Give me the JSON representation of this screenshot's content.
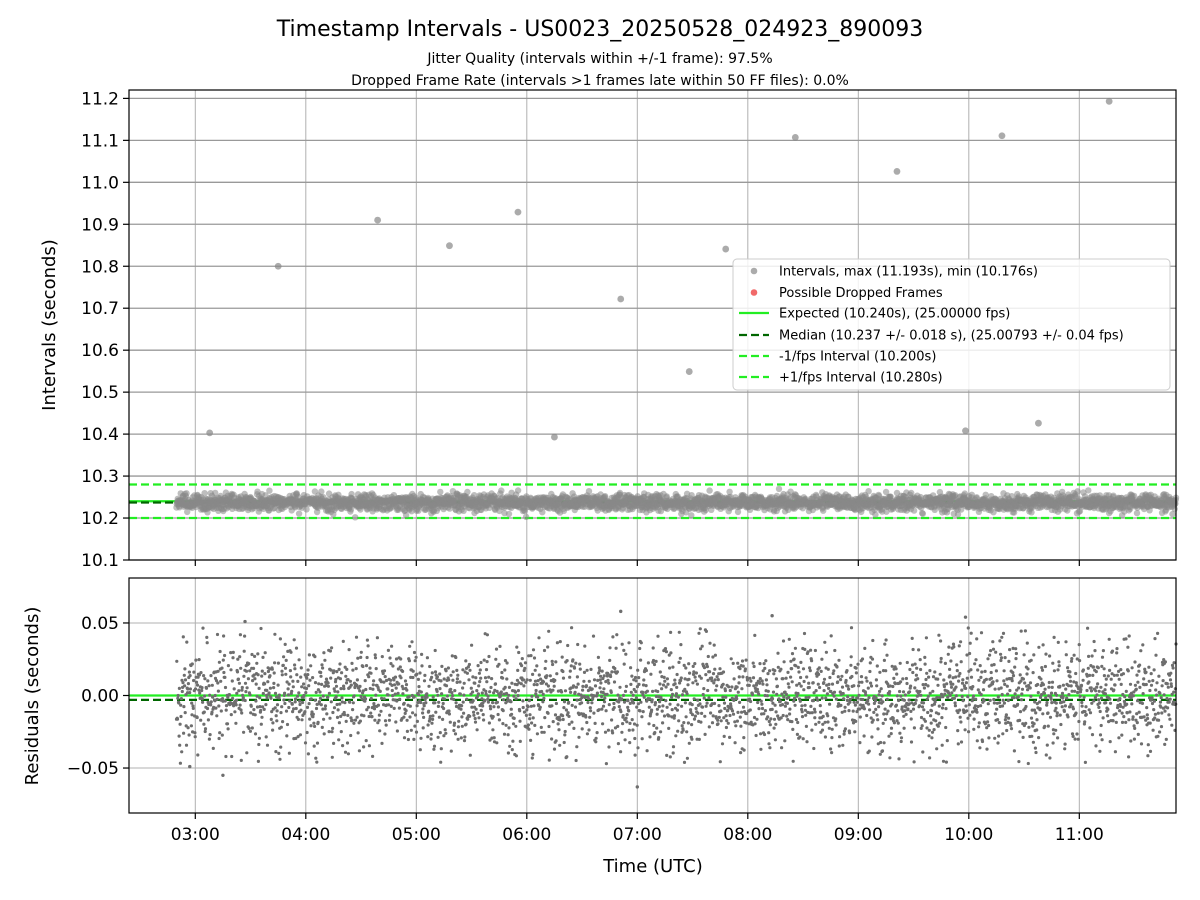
{
  "chart_data": {
    "title": "Timestamp Intervals - US0023_20250528_024923_890093",
    "subtitle_lines": [
      "Jitter Quality (intervals within +/-1 frame): 97.5%",
      "Dropped Frame Rate (intervals >1 frames late within 50 FF files): 0.0%"
    ],
    "xlabel": "Time (UTC)",
    "x_range_hours": [
      2.4,
      11.875
    ],
    "x_ticks": [
      {
        "label": "03:00",
        "hours": 3
      },
      {
        "label": "04:00",
        "hours": 4
      },
      {
        "label": "05:00",
        "hours": 5
      },
      {
        "label": "06:00",
        "hours": 6
      },
      {
        "label": "07:00",
        "hours": 7
      },
      {
        "label": "08:00",
        "hours": 8
      },
      {
        "label": "09:00",
        "hours": 9
      },
      {
        "label": "10:00",
        "hours": 10
      },
      {
        "label": "11:00",
        "hours": 11
      }
    ],
    "data_time_range_hours": [
      2.83,
      11.875
    ],
    "top_panel": {
      "type": "scatter",
      "ylabel": "Intervals (seconds)",
      "ylim": [
        10.1,
        11.22
      ],
      "y_ticks": [
        "10.1",
        "10.2",
        "10.3",
        "10.4",
        "10.5",
        "10.6",
        "10.7",
        "10.8",
        "10.9",
        "11.0",
        "11.1",
        "11.2"
      ],
      "grid": true,
      "reference_lines": [
        {
          "name": "expected",
          "y": 10.24,
          "style": "solid",
          "color": "#22ee22"
        },
        {
          "name": "median",
          "y": 10.237,
          "style": "dashed",
          "color": "#006600"
        },
        {
          "name": "minus-1fps",
          "y": 10.2,
          "style": "dashed",
          "color": "#22ee22"
        },
        {
          "name": "plus-1fps",
          "y": 10.28,
          "style": "dashed",
          "color": "#22ee22"
        }
      ],
      "outliers": [
        {
          "hours": 3.13,
          "y": 10.403
        },
        {
          "hours": 3.75,
          "y": 10.8
        },
        {
          "hours": 4.65,
          "y": 10.91
        },
        {
          "hours": 5.3,
          "y": 10.849
        },
        {
          "hours": 5.92,
          "y": 10.929
        },
        {
          "hours": 6.25,
          "y": 10.393
        },
        {
          "hours": 6.85,
          "y": 10.722
        },
        {
          "hours": 7.47,
          "y": 10.549
        },
        {
          "hours": 7.8,
          "y": 10.841
        },
        {
          "hours": 8.43,
          "y": 11.107
        },
        {
          "hours": 9.35,
          "y": 11.026
        },
        {
          "hours": 9.97,
          "y": 10.408
        },
        {
          "hours": 10.3,
          "y": 11.111
        },
        {
          "hours": 10.63,
          "y": 10.426
        },
        {
          "hours": 11.27,
          "y": 11.193
        }
      ],
      "legend": {
        "placement": "center-right",
        "entries": [
          {
            "label": "Intervals, max (11.193s), min (10.176s)",
            "marker": "dot",
            "color": "#888888"
          },
          {
            "label": "Possible Dropped Frames",
            "marker": "dot",
            "color": "#ee4444"
          },
          {
            "label": "Expected (10.240s), (25.00000 fps)",
            "marker": "solid",
            "color": "#22ee22"
          },
          {
            "label": "Median (10.237 +/- 0.018 s), (25.00793 +/- 0.04 fps)",
            "marker": "dashed",
            "color": "#006600"
          },
          {
            "label": "-1/fps Interval (10.200s)",
            "marker": "dashed",
            "color": "#22ee22"
          },
          {
            "label": "+1/fps Interval (10.280s)",
            "marker": "dashed",
            "color": "#22ee22"
          }
        ]
      },
      "bulk_points": {
        "center": 10.237,
        "stdev": 0.018,
        "count": 3100
      }
    },
    "bottom_panel": {
      "type": "scatter",
      "ylabel": "Residuals (seconds)",
      "ylim": [
        -0.081,
        0.081
      ],
      "y_ticks": [
        {
          "label": "0.05",
          "value": 0.05
        },
        {
          "label": "0.00",
          "value": 0.0
        },
        {
          "label": "−0.05",
          "value": -0.05
        }
      ],
      "grid": true,
      "reference_lines": [
        {
          "name": "zero",
          "y": 0.0,
          "style": "solid",
          "color": "#22ee22"
        },
        {
          "name": "median-offset",
          "y": -0.003,
          "style": "dashed",
          "color": "#006600"
        }
      ],
      "residual_points": {
        "stdev": 0.018,
        "count": 3100
      },
      "notable_points": [
        {
          "hours": 3.45,
          "y": 0.051
        },
        {
          "hours": 6.85,
          "y": 0.058
        },
        {
          "hours": 8.22,
          "y": 0.055
        },
        {
          "hours": 9.97,
          "y": 0.054
        },
        {
          "hours": 7.0,
          "y": -0.063
        },
        {
          "hours": 3.25,
          "y": -0.055
        },
        {
          "hours": 2.95,
          "y": -0.049
        }
      ]
    },
    "colors": {
      "points": "#888888",
      "residual_points": "#6e6e6e",
      "expected": "#22ee22",
      "median": "#006600"
    }
  }
}
